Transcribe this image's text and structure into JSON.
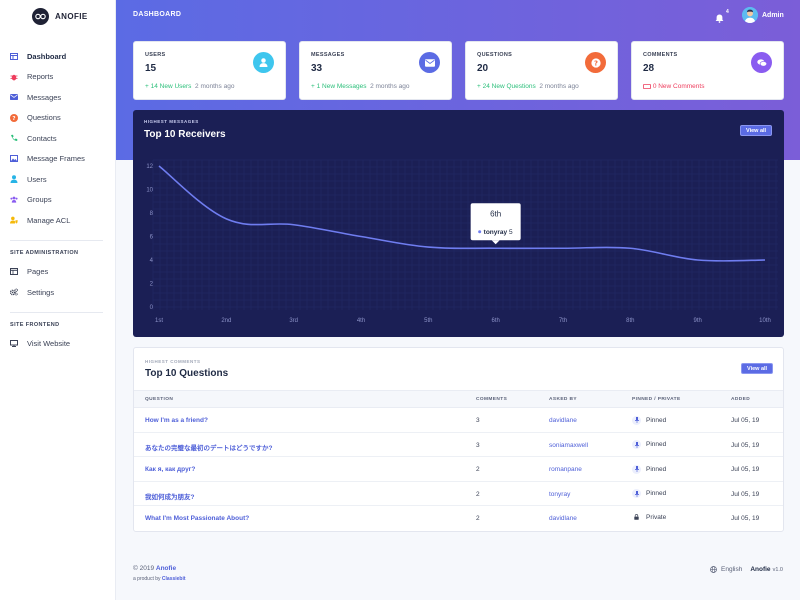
{
  "brand": {
    "name": "ANOFIE"
  },
  "sidebar": {
    "items": [
      {
        "label": "Dashboard",
        "icon": "dashboard-icon",
        "color": "#4e5fd8"
      },
      {
        "label": "Reports",
        "icon": "bug-icon",
        "color": "#ee3d5d"
      },
      {
        "label": "Messages",
        "icon": "envelope-icon",
        "color": "#4e5fd8"
      },
      {
        "label": "Questions",
        "icon": "question-icon",
        "color": "#f26b3a"
      },
      {
        "label": "Contacts",
        "icon": "phone-icon",
        "color": "#2bbf7a"
      },
      {
        "label": "Message Frames",
        "icon": "image-icon",
        "color": "#4e5fd8"
      },
      {
        "label": "Users",
        "icon": "user-icon",
        "color": "#27b4e6"
      },
      {
        "label": "Groups",
        "icon": "users-icon",
        "color": "#8a5cf0"
      },
      {
        "label": "Manage ACL",
        "icon": "user-shield-icon",
        "color": "#f5b90a"
      }
    ],
    "section_admin": "SITE ADMINISTRATION",
    "admin_items": [
      {
        "label": "Pages",
        "icon": "page-icon"
      },
      {
        "label": "Settings",
        "icon": "cogs-icon"
      }
    ],
    "section_frontend": "SITE FRONTEND",
    "frontend_items": [
      {
        "label": "Visit Website",
        "icon": "monitor-icon"
      }
    ]
  },
  "header": {
    "title": "DASHBOARD",
    "notification_count": "4",
    "user": "Admin"
  },
  "stats": [
    {
      "label": "USERS",
      "value": "15",
      "delta": "+ 14 New Users",
      "time": "2 months ago",
      "icon": "user-icon",
      "color": "#3ec6ee",
      "delta_type": "up"
    },
    {
      "label": "MESSAGES",
      "value": "33",
      "delta": "+ 1 New Messages",
      "time": "2 months ago",
      "icon": "envelope-icon",
      "color": "#5b6be4",
      "delta_type": "up"
    },
    {
      "label": "QUESTIONS",
      "value": "20",
      "delta": "+ 24 New Questions",
      "time": "2 months ago",
      "icon": "question-icon",
      "color": "#f26b3a",
      "delta_type": "up"
    },
    {
      "label": "COMMENTS",
      "value": "28",
      "delta": "0 New Comments",
      "time": "",
      "icon": "comments-icon",
      "color": "#8a5cf0",
      "delta_type": "zero"
    }
  ],
  "chart_card": {
    "kicker": "HIGHEST MESSAGES",
    "title": "Top 10 Receivers",
    "view_all": "View all",
    "tooltip": {
      "title": "6th",
      "series": "tonyray",
      "value": "5"
    }
  },
  "chart_data": {
    "type": "line",
    "categories": [
      "1st",
      "2nd",
      "3rd",
      "4th",
      "5th",
      "6th",
      "7th",
      "8th",
      "9th",
      "10th"
    ],
    "series": [
      {
        "values": [
          12,
          7.5,
          7,
          6,
          5.1,
          5,
          5,
          5,
          4,
          4
        ]
      }
    ],
    "ylim": [
      0,
      12
    ],
    "yticks": [
      0,
      2,
      4,
      6,
      8,
      10,
      12
    ],
    "grid": true,
    "color": "#6f7df0"
  },
  "questions": {
    "kicker": "HIGHEST COMMENTS",
    "title": "Top 10 Questions",
    "view_all": "View all",
    "columns": [
      "QUESTION",
      "COMMENTS",
      "ASKED BY",
      "PINNED / PRIVATE",
      "ADDED"
    ],
    "rows": [
      {
        "question": "How I'm as a friend?",
        "comments": "3",
        "asked_by": "davidlane",
        "status": "Pinned",
        "status_icon": "pin-icon",
        "added": "Jul 05, 19"
      },
      {
        "question": "あなたの完璧な最初のデートはどうですか?",
        "comments": "3",
        "asked_by": "soniamaxwell",
        "status": "Pinned",
        "status_icon": "pin-icon",
        "added": "Jul 05, 19"
      },
      {
        "question": "Как я, как друг?",
        "comments": "2",
        "asked_by": "romanpane",
        "status": "Pinned",
        "status_icon": "pin-icon",
        "added": "Jul 05, 19"
      },
      {
        "question": "我如何成为朋友?",
        "comments": "2",
        "asked_by": "tonyray",
        "status": "Pinned",
        "status_icon": "pin-icon",
        "added": "Jul 05, 19"
      },
      {
        "question": "What I'm Most Passionate About?",
        "comments": "2",
        "asked_by": "davidlane",
        "status": "Private",
        "status_icon": "lock-icon",
        "added": "Jul 05, 19"
      }
    ]
  },
  "footer": {
    "copyright": "© 2019",
    "brand": "Anofie",
    "product_by": "a product by",
    "company": "Classiebit",
    "language": "English",
    "app_name": "Anofie",
    "version": "v1.0"
  }
}
